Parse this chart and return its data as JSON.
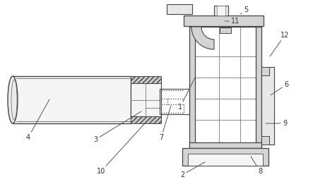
{
  "bg_color": "#ffffff",
  "lc": "#777777",
  "dc": "#444444",
  "gc": "#bbbbbb",
  "fc_light": "#f5f5f5",
  "fc_gray": "#d4d4d4",
  "fc_mid": "#e8e8e8",
  "figsize": [
    4.43,
    2.61
  ],
  "dpi": 100,
  "label_color": "#333333",
  "label_fontsize": 7.0
}
